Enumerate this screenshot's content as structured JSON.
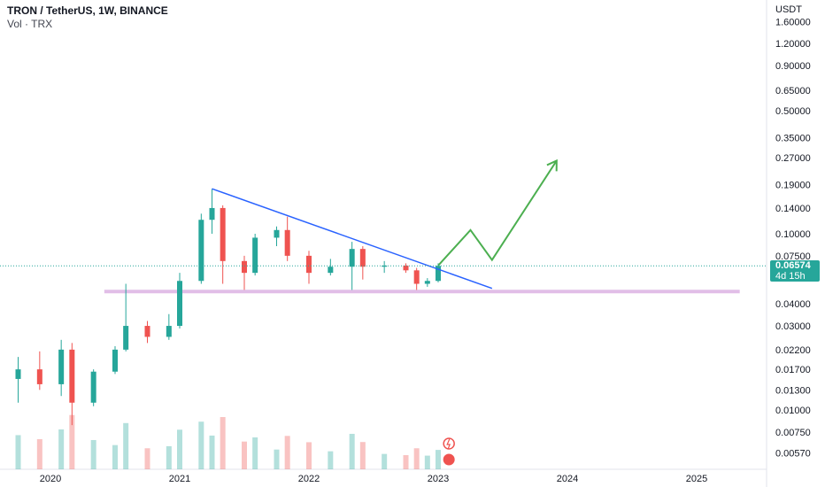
{
  "header": {
    "symbol_line": "TRON / TetherUS, 1W, BINANCE",
    "volume_line": "Vol · TRX"
  },
  "price_badge": {
    "price": "0.06574",
    "countdown": "4d 15h"
  },
  "colors": {
    "up": "#26a69a",
    "down": "#ef5350",
    "trendline": "#2962ff",
    "support": "#e1bee7",
    "projection": "#4caf50",
    "grid": "#f0f3fa"
  },
  "chart_data": {
    "type": "candlestick",
    "axis_unit": "USDT",
    "y_scale": "log",
    "y_ticks": [
      "1.60000",
      "1.20000",
      "0.90000",
      "0.65000",
      "0.50000",
      "0.35000",
      "0.27000",
      "0.19000",
      "0.14000",
      "0.10000",
      "0.07500",
      "0.04000",
      "0.03000",
      "0.02200",
      "0.01700",
      "0.01300",
      "0.01000",
      "0.00750",
      "0.00570"
    ],
    "x_ticks": [
      "2020",
      "2021",
      "2022",
      "2023",
      "2024",
      "2025"
    ],
    "last_price": 0.06574,
    "series_ohlc": [
      {
        "t": "2019-10",
        "o": 0.015,
        "h": 0.02,
        "l": 0.011,
        "c": 0.017
      },
      {
        "t": "2019-12",
        "o": 0.017,
        "h": 0.0215,
        "l": 0.013,
        "c": 0.014
      },
      {
        "t": "2020-02",
        "o": 0.014,
        "h": 0.025,
        "l": 0.012,
        "c": 0.022
      },
      {
        "t": "2020-03",
        "o": 0.022,
        "h": 0.024,
        "l": 0.0082,
        "c": 0.011
      },
      {
        "t": "2020-05",
        "o": 0.011,
        "h": 0.017,
        "l": 0.0105,
        "c": 0.0165
      },
      {
        "t": "2020-07",
        "o": 0.0165,
        "h": 0.023,
        "l": 0.016,
        "c": 0.022
      },
      {
        "t": "2020-08",
        "o": 0.022,
        "h": 0.052,
        "l": 0.0215,
        "c": 0.03
      },
      {
        "t": "2020-10",
        "o": 0.03,
        "h": 0.032,
        "l": 0.024,
        "c": 0.026
      },
      {
        "t": "2020-12",
        "o": 0.026,
        "h": 0.035,
        "l": 0.025,
        "c": 0.03
      },
      {
        "t": "2021-01",
        "o": 0.03,
        "h": 0.06,
        "l": 0.029,
        "c": 0.054
      },
      {
        "t": "2021-03",
        "o": 0.054,
        "h": 0.13,
        "l": 0.052,
        "c": 0.12
      },
      {
        "t": "2021-04",
        "o": 0.12,
        "h": 0.18,
        "l": 0.1,
        "c": 0.14
      },
      {
        "t": "2021-05",
        "o": 0.14,
        "h": 0.145,
        "l": 0.052,
        "c": 0.07
      },
      {
        "t": "2021-07",
        "o": 0.07,
        "h": 0.075,
        "l": 0.048,
        "c": 0.06
      },
      {
        "t": "2021-08",
        "o": 0.06,
        "h": 0.1,
        "l": 0.058,
        "c": 0.095
      },
      {
        "t": "2021-10",
        "o": 0.095,
        "h": 0.11,
        "l": 0.085,
        "c": 0.105
      },
      {
        "t": "2021-11",
        "o": 0.105,
        "h": 0.125,
        "l": 0.07,
        "c": 0.075
      },
      {
        "t": "2022-01",
        "o": 0.075,
        "h": 0.08,
        "l": 0.052,
        "c": 0.06
      },
      {
        "t": "2022-03",
        "o": 0.06,
        "h": 0.072,
        "l": 0.058,
        "c": 0.065
      },
      {
        "t": "2022-05",
        "o": 0.065,
        "h": 0.09,
        "l": 0.048,
        "c": 0.082
      },
      {
        "t": "2022-06",
        "o": 0.082,
        "h": 0.085,
        "l": 0.055,
        "c": 0.065
      },
      {
        "t": "2022-08",
        "o": 0.065,
        "h": 0.07,
        "l": 0.06,
        "c": 0.066
      },
      {
        "t": "2022-10",
        "o": 0.066,
        "h": 0.068,
        "l": 0.06,
        "c": 0.062
      },
      {
        "t": "2022-11",
        "o": 0.062,
        "h": 0.064,
        "l": 0.048,
        "c": 0.052
      },
      {
        "t": "2022-12",
        "o": 0.052,
        "h": 0.056,
        "l": 0.05,
        "c": 0.054
      },
      {
        "t": "2023-01",
        "o": 0.054,
        "h": 0.068,
        "l": 0.053,
        "c": 0.06574
      }
    ],
    "volume_scale": "relative",
    "annotations": [
      {
        "type": "trendline",
        "from": {
          "t": "2021-04",
          "price": 0.18
        },
        "to": {
          "t": "2023-06",
          "price": 0.049
        }
      },
      {
        "type": "support",
        "price": 0.047,
        "from_t": "2020-06",
        "to_t": "2025-05"
      },
      {
        "type": "projection",
        "points": [
          {
            "t": "2023-01",
            "price": 0.066
          },
          {
            "t": "2023-04",
            "price": 0.105
          },
          {
            "t": "2023-06",
            "price": 0.071
          },
          {
            "t": "2023-12",
            "price": 0.26
          }
        ]
      }
    ]
  }
}
